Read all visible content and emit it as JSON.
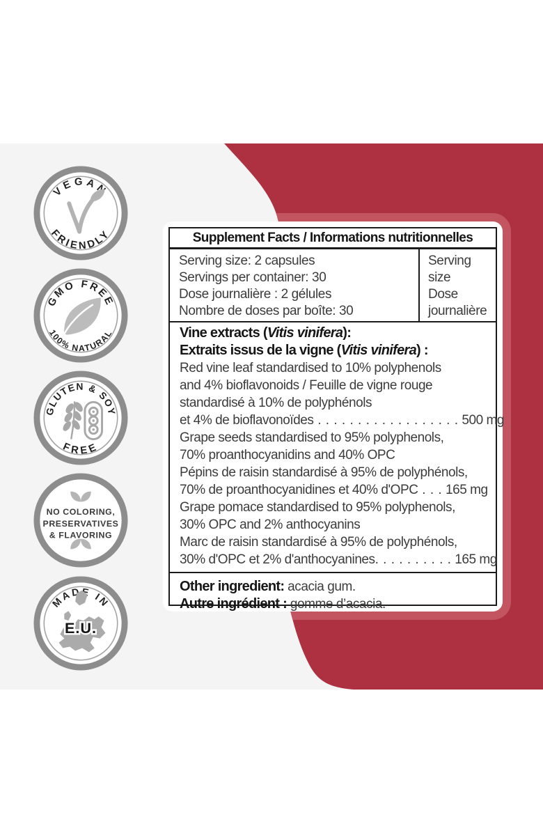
{
  "colors": {
    "red_dark": "#ad3141",
    "red_light": "#c35561",
    "background_gray": "#f5f4f5",
    "panel_white": "#ffffff",
    "table_border": "#1b1b1b",
    "badge_ring_gray": "#8d8d8d",
    "badge_icon_gray": "#b3b3b3"
  },
  "badges": [
    {
      "name": "vegan-friendly",
      "top_text": "VEGAN",
      "bottom_text": "FRIENDLY",
      "icon": "vegan-sprout-icon"
    },
    {
      "name": "gmo-free",
      "top_text": "GMO FREE",
      "bottom_text": "100% NATURAL",
      "icon": "leaf-icon"
    },
    {
      "name": "gluten-soy-free",
      "top_text": "GLUTEN & SOY",
      "bottom_text": "FREE",
      "icon": "wheat-soy-pod-icon"
    },
    {
      "name": "no-additives",
      "lines": [
        "NO COLORING,",
        "PRESERVATIVES",
        "& FLAVORING"
      ],
      "icon": "leaves-icon"
    },
    {
      "name": "made-in-eu",
      "top_text": "MADE IN",
      "center_text": "E.U.",
      "icon": "europe-map-icon"
    }
  ],
  "panel": {
    "title": "Supplement Facts / Informations nutritionnelles",
    "serving_rows": [
      "Serving size: 2 capsules",
      "Servings per container: 30",
      "Dose journalière : 2 gélules",
      "Nombre de doses par boîte: 30"
    ],
    "serving_side_lines": [
      "Serving",
      "size",
      "Dose",
      "journalière"
    ],
    "ingredient_lines": [
      {
        "segments": [
          {
            "t": "Vine extracts (",
            "b": 1
          },
          {
            "t": "Vitis vinifera",
            "b": 1,
            "i": 1
          },
          {
            "t": "):",
            "b": 1
          }
        ]
      },
      {
        "segments": [
          {
            "t": "Extraits issus de la vigne (",
            "b": 1
          },
          {
            "t": "Vitis vinifera",
            "b": 1,
            "i": 1
          },
          {
            "t": ") :",
            "b": 1
          }
        ]
      },
      {
        "segments": [
          {
            "t": "Red vine leaf standardised to 10% polyphenols"
          }
        ]
      },
      {
        "segments": [
          {
            "t": "and 4% bioflavonoids / Feuille de vigne rouge"
          }
        ]
      },
      {
        "segments": [
          {
            "t": "standardisé à 10% de polyphénols"
          }
        ]
      },
      {
        "segments": [
          {
            "t": "et 4% de bioflavonoïdes"
          }
        ],
        "dots": " . . . . . . . . . . . . . . . . . .",
        "value": " 500 mg"
      },
      {
        "segments": [
          {
            "t": "Grape seeds standardised to 95% polyphenols,"
          }
        ]
      },
      {
        "segments": [
          {
            "t": "70% proanthocyanidins and 40% OPC"
          }
        ]
      },
      {
        "segments": [
          {
            "t": "Pépins de raisin standardisé à 95% de polyphénols,"
          }
        ]
      },
      {
        "segments": [
          {
            "t": "70% de proanthocyanidines et 40% d'OPC"
          }
        ],
        "dots": " . . .",
        "value": " 165 mg"
      },
      {
        "segments": [
          {
            "t": "Grape pomace standardised to 95% polyphenols,"
          }
        ]
      },
      {
        "segments": [
          {
            "t": "30% OPC and 2% anthocyanins"
          }
        ]
      },
      {
        "segments": [
          {
            "t": "Marc de raisin standardisé à 95% de polyphénols,"
          }
        ]
      },
      {
        "segments": [
          {
            "t": "30% d'OPC et 2% d'anthocyanines"
          }
        ],
        "dots": ". . . . . . . . . .",
        "value": " 165 mg"
      }
    ],
    "other_ingredients": [
      {
        "label": "Other ingredient:",
        "value": " acacia gum."
      },
      {
        "label": "Autre ingrédient :",
        "value": " gomme d’acacia."
      }
    ]
  }
}
